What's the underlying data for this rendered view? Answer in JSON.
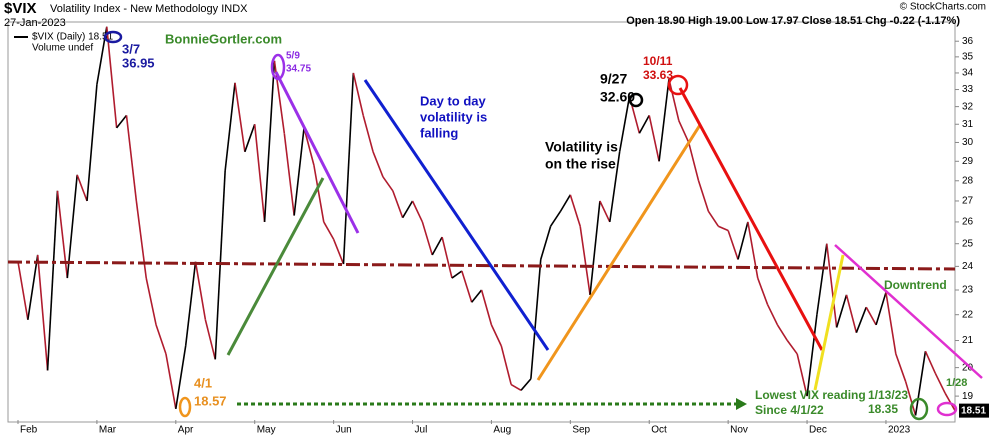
{
  "chart_data": {
    "type": "line",
    "title": "$VIX",
    "subtitle": "Volatility Index - New Methodology INDX",
    "date": "27-Jan-2023",
    "quote": "Open 18.90 High 19.00 Low 17.97 Close 18.51 Chg -0.22 (-1.17%)",
    "copyright": "© StockCharts.com",
    "legend": [
      "$VIX (Daily) 18.51",
      "Volume undef"
    ],
    "up_color": "#000000",
    "down_color": "#b01c2e",
    "log_scale": true,
    "categories": [
      "Feb",
      null,
      null,
      null,
      null,
      null,
      null,
      null,
      "Mar",
      null,
      null,
      null,
      null,
      null,
      null,
      null,
      "Apr",
      null,
      null,
      null,
      null,
      null,
      null,
      null,
      "May",
      null,
      null,
      null,
      null,
      null,
      null,
      null,
      "Jun",
      null,
      null,
      null,
      null,
      null,
      null,
      null,
      "Jul",
      null,
      null,
      null,
      null,
      null,
      null,
      null,
      "Aug",
      null,
      null,
      null,
      null,
      null,
      null,
      null,
      "Sep",
      null,
      null,
      null,
      null,
      null,
      null,
      null,
      "Oct",
      null,
      null,
      null,
      null,
      null,
      null,
      null,
      "Nov",
      null,
      null,
      null,
      null,
      null,
      null,
      null,
      "Dec",
      null,
      null,
      null,
      null,
      null,
      null,
      null,
      "2023",
      null,
      null,
      null,
      null,
      null,
      null,
      null
    ],
    "values": [
      24.2,
      21.8,
      24.5,
      19.9,
      27.5,
      23.5,
      28.3,
      27.0,
      33.3,
      36.95,
      30.8,
      31.5,
      27.0,
      23.5,
      21.6,
      20.5,
      18.57,
      20.8,
      24.2,
      21.8,
      20.3,
      28.5,
      33.4,
      29.5,
      31.0,
      26.0,
      34.75,
      30.5,
      26.3,
      30.8,
      28.8,
      26.0,
      25.2,
      24.1,
      34.0,
      31.5,
      29.5,
      28.2,
      27.5,
      26.2,
      27.0,
      26.0,
      24.5,
      25.3,
      23.5,
      23.8,
      22.5,
      23.0,
      21.6,
      20.8,
      19.4,
      19.2,
      19.6,
      24.3,
      25.8,
      26.5,
      27.3,
      25.8,
      22.8,
      27.0,
      26.0,
      29.5,
      32.6,
      30.5,
      31.5,
      29.0,
      33.63,
      31.2,
      30.0,
      28.0,
      26.5,
      25.8,
      25.6,
      24.3,
      26.0,
      23.5,
      22.4,
      21.6,
      21.0,
      20.5,
      19.0,
      22.0,
      25.0,
      21.5,
      22.8,
      21.3,
      22.3,
      21.6,
      22.9,
      20.5,
      19.5,
      18.35,
      20.6,
      19.8,
      19.1,
      18.51
    ],
    "ylim": [
      18.2,
      37
    ],
    "yticks": [
      19,
      20,
      21,
      22,
      23,
      24,
      25,
      26,
      27,
      28,
      29,
      30,
      31,
      32,
      33,
      34,
      35,
      36
    ],
    "annotations": [
      {
        "text": [
          "3/7"
        ],
        "color": "#1a1aa0"
      },
      {
        "text": [
          "36.95"
        ],
        "color": "#1a1aa0"
      },
      {
        "text": [
          "5/9"
        ],
        "color": "#8b2be2"
      },
      {
        "text": [
          "34.75"
        ],
        "color": "#8b2be2"
      },
      {
        "text": [
          "BonnieGortler.com"
        ],
        "color": "#3a8a2a"
      },
      {
        "text": [
          "Day to day",
          "volatility is",
          "falling"
        ],
        "color": "#1010c0"
      },
      {
        "text": [
          "9/27"
        ],
        "color": "#000000"
      },
      {
        "text": [
          "32.60"
        ],
        "color": "#000000"
      },
      {
        "text": [
          "10/11"
        ],
        "color": "#d01010"
      },
      {
        "text": [
          "33.63"
        ],
        "color": "#d01010"
      },
      {
        "text": [
          "Volatility is",
          "on the rise"
        ],
        "color": "#000000"
      },
      {
        "text": [
          "4/1"
        ],
        "color": "#e89020"
      },
      {
        "text": [
          "18.57"
        ],
        "color": "#e89020"
      },
      {
        "text": [
          "Lowest VIX reading",
          "Since 4/1/22"
        ],
        "color": "#3a8a2a"
      },
      {
        "text": [
          "1/13/23"
        ],
        "color": "#3a8a2a"
      },
      {
        "text": [
          "18.35"
        ],
        "color": "#3a8a2a"
      },
      {
        "text": [
          "Downtrend"
        ],
        "color": "#3a8a2a"
      },
      {
        "text": [
          "1/28"
        ],
        "color": "#3a8a2a"
      }
    ]
  }
}
